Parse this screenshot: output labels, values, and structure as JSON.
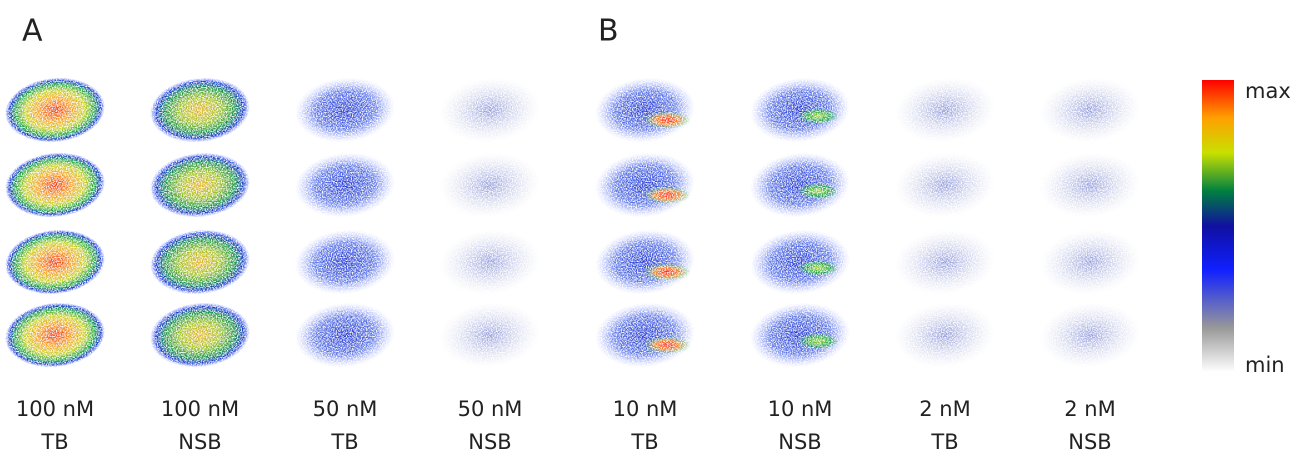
{
  "panels": [
    {
      "label": "A",
      "columns": [
        {
          "concentration": "100 nM",
          "binding": "TB"
        },
        {
          "concentration": "100 nM",
          "binding": "NSB"
        },
        {
          "concentration": "50 nM",
          "binding": "TB"
        },
        {
          "concentration": "50 nM",
          "binding": "NSB"
        }
      ]
    },
    {
      "label": "B",
      "columns": [
        {
          "concentration": "10 nM",
          "binding": "TB"
        },
        {
          "concentration": "10 nM",
          "binding": "NSB"
        },
        {
          "concentration": "2 nM",
          "binding": "TB"
        },
        {
          "concentration": "2 nM",
          "binding": "NSB"
        }
      ]
    }
  ],
  "colorbar": {
    "max": "max",
    "min": "min"
  }
}
